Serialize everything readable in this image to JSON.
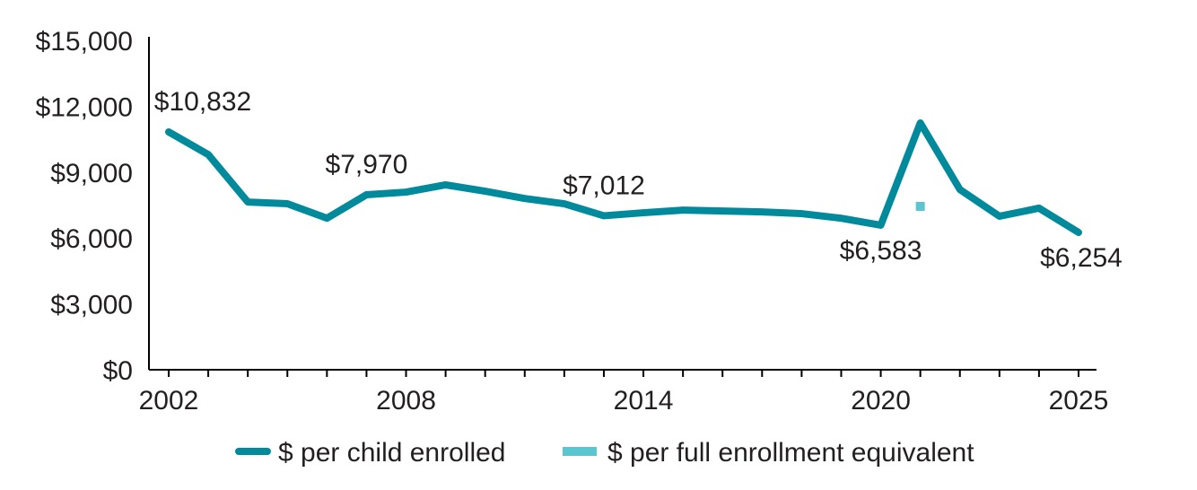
{
  "chart_data": {
    "type": "line",
    "title": "",
    "xlabel": "",
    "ylabel": "",
    "ylim": [
      0,
      15000
    ],
    "xlim": [
      2002,
      2025
    ],
    "y_ticks": [
      0,
      3000,
      6000,
      9000,
      12000,
      15000
    ],
    "y_tick_labels": [
      "$0",
      "$3,000",
      "$6,000",
      "$9,000",
      "$12,000",
      "$15,000"
    ],
    "x_tick_labels": [
      {
        "year": 2002,
        "label": "2002"
      },
      {
        "year": 2008,
        "label": "2008"
      },
      {
        "year": 2014,
        "label": "2014"
      },
      {
        "year": 2020,
        "label": "2020"
      },
      {
        "year": 2025,
        "label": "2025"
      }
    ],
    "grid": false,
    "legend_position": "bottom",
    "series": [
      {
        "name": "$ per child enrolled",
        "color": "#008a9c",
        "x": [
          2002,
          2003,
          2004,
          2005,
          2006,
          2007,
          2008,
          2009,
          2010,
          2011,
          2012,
          2013,
          2014,
          2015,
          2016,
          2017,
          2018,
          2019,
          2020,
          2021,
          2022,
          2023,
          2024,
          2025
        ],
        "values": [
          10832,
          9800,
          7640,
          7560,
          6900,
          7970,
          8090,
          8420,
          8130,
          7800,
          7560,
          7012,
          7150,
          7270,
          7230,
          7190,
          7110,
          6900,
          6583,
          11240,
          8210,
          6990,
          7360,
          6254
        ]
      },
      {
        "name": "$ per full enrollment equivalent",
        "color": "#5bc5d0",
        "x": [
          2021
        ],
        "values": [
          7440
        ]
      }
    ],
    "annotations": [
      {
        "year": 2002,
        "value": 10832,
        "label": "$10,832",
        "pos": "above"
      },
      {
        "year": 2007,
        "value": 7970,
        "label": "$7,970",
        "pos": "above"
      },
      {
        "year": 2013,
        "value": 7012,
        "label": "$7,012",
        "pos": "above"
      },
      {
        "year": 2020,
        "value": 6583,
        "label": "$6,583",
        "pos": "below"
      },
      {
        "year": 2025,
        "value": 6254,
        "label": "$6,254",
        "pos": "below"
      }
    ]
  }
}
